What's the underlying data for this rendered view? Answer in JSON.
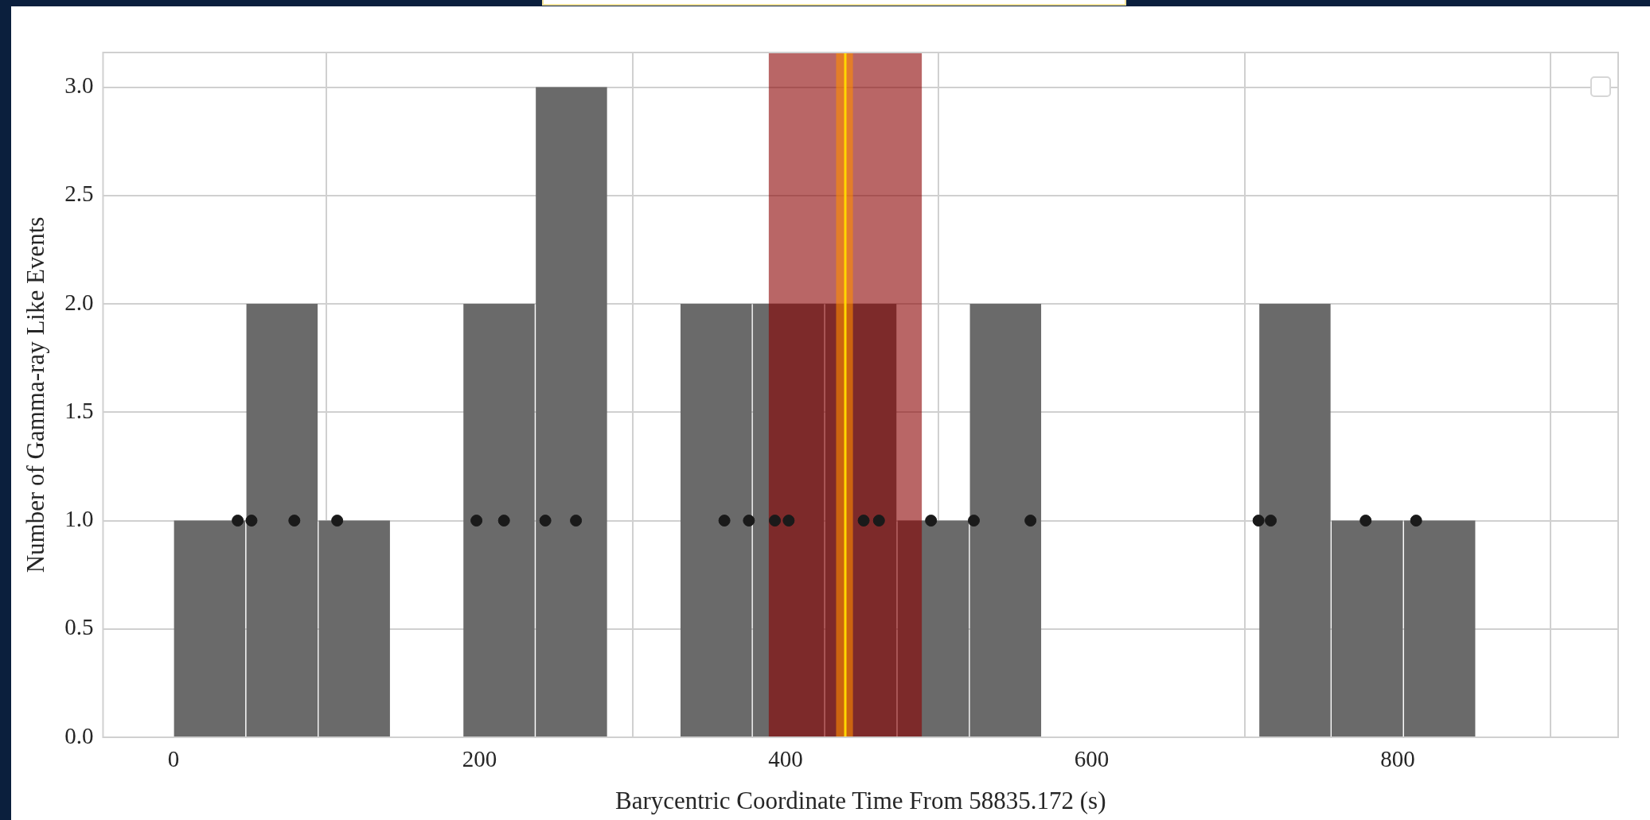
{
  "chart_data": {
    "type": "histogram",
    "xlabel": "Barycentric Coordinate Time From 58835.172 (s)",
    "ylabel": "Number of Gamma-ray Like Events",
    "series": [
      {
        "color": "#6a6a6a",
        "bins": [
          0,
          47.3,
          94.6,
          141.8,
          189.1,
          236.4,
          283.7,
          331,
          378.2,
          425.5,
          472.8,
          520.1,
          567.3,
          614.6,
          661.9,
          709.2,
          756.4,
          803.7,
          851
        ],
        "values": [
          1,
          2,
          1,
          0,
          2,
          3,
          0,
          2,
          2,
          2,
          1,
          2,
          0,
          0,
          0,
          2,
          1,
          1
        ]
      },
      {
        "type": "scatter",
        "color": "#1a1a1a",
        "x": [
          42,
          51,
          79,
          107,
          198,
          216,
          243,
          263,
          360,
          376,
          393,
          402,
          451,
          461,
          495,
          523,
          560,
          709,
          717,
          779,
          812
        ],
        "values": [
          1,
          1,
          1,
          1,
          1,
          1,
          1,
          1,
          1,
          1,
          1,
          1,
          1,
          1,
          1,
          1,
          1,
          1,
          1,
          1,
          1
        ]
      }
    ],
    "bands": [
      {
        "axis": "x",
        "from": 389,
        "to": 489,
        "color": "#8b0000"
      },
      {
        "axis": "x",
        "from": 433,
        "to": 444,
        "color": "#ff8c00"
      }
    ],
    "ref_lines": [
      {
        "axis": "x",
        "value": 439,
        "color": "#ffd700"
      }
    ],
    "xlim": [
      -46,
      944
    ],
    "ylim": [
      0,
      3.16
    ],
    "xticks": [
      0,
      200,
      400,
      600,
      800
    ],
    "yticks": [
      {
        "value": 0,
        "label": "0.0"
      },
      {
        "value": 0.5,
        "label": "0.5"
      },
      {
        "value": 1,
        "label": "1.0"
      },
      {
        "value": 1.5,
        "label": "1.5"
      },
      {
        "value": 2,
        "label": "2.0"
      },
      {
        "value": 2.5,
        "label": "2.5"
      },
      {
        "value": 3,
        "label": "3.0"
      }
    ],
    "grid": true,
    "marker": "circle"
  }
}
